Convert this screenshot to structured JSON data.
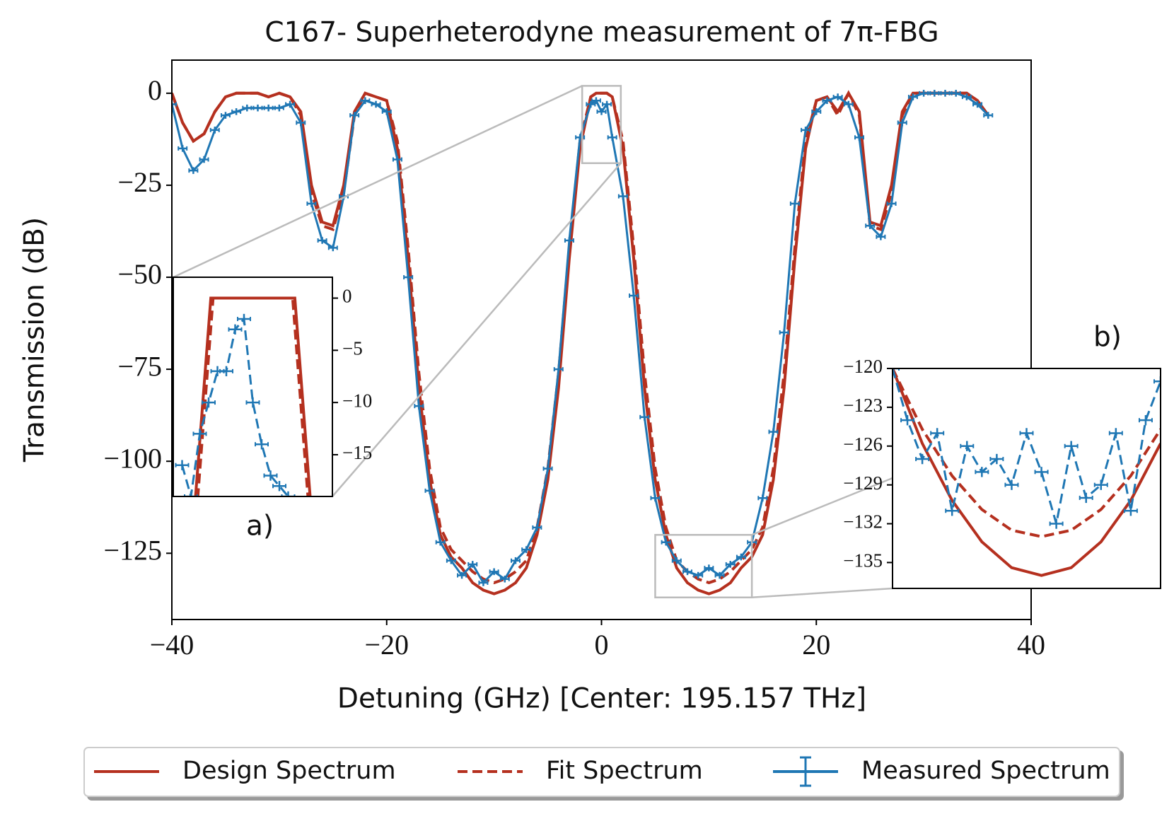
{
  "chart_data": [
    {
      "type": "line",
      "title": "C167- Superheterodyne measurement of 7π-FBG",
      "x_label": "Detuning (GHz) [Center: 195.157 THz]",
      "y_label": "Transmission (dB)",
      "xlim": [
        -40,
        40
      ],
      "ylim": [
        -143,
        9
      ],
      "xticks": [
        {
          "value": -40,
          "label": "−40"
        },
        {
          "value": -20,
          "label": "−20"
        },
        0,
        20,
        40
      ],
      "yticks": [
        0,
        {
          "value": -25,
          "label": "−25"
        },
        {
          "value": -50,
          "label": "−50"
        },
        {
          "value": -75,
          "label": "−75"
        },
        {
          "value": -100,
          "label": "−100"
        },
        {
          "value": -125,
          "label": "−125"
        }
      ],
      "legend": "bottom-outside",
      "x": [
        -40,
        -39,
        -38,
        -37,
        -36,
        -35,
        -34,
        -33,
        -32,
        -31,
        -30,
        -29,
        -28,
        -27,
        -26,
        -25,
        -24,
        -23,
        -22,
        -21,
        -20,
        -19,
        -18,
        -17,
        -16,
        -15,
        -14,
        -13,
        -12,
        -11,
        -10,
        -9,
        -8,
        -7,
        -6,
        -5,
        -4,
        -3,
        -2,
        -1,
        -0.5,
        0,
        0.5,
        1,
        2,
        3,
        4,
        5,
        6,
        7,
        8,
        9,
        10,
        11,
        12,
        13,
        14,
        15,
        16,
        17,
        18,
        19,
        20,
        21,
        22,
        23,
        24,
        25,
        26,
        27,
        28,
        29,
        30,
        31,
        32,
        33,
        34,
        35,
        36
      ],
      "series": [
        {
          "name": "Design Spectrum",
          "color": "#b5301f",
          "style": "solid",
          "values": [
            0,
            -8,
            -13,
            -11,
            -5,
            -1,
            0,
            0,
            0,
            -1,
            0,
            -1,
            -5,
            -25,
            -35,
            -36,
            -25,
            -5,
            0,
            -1,
            -2,
            -15,
            -45,
            -80,
            -105,
            -120,
            -126,
            -129,
            -133,
            -135,
            -136,
            -135,
            -133,
            -129,
            -120,
            -105,
            -80,
            -45,
            -15,
            -1,
            0,
            0,
            0,
            -1,
            -15,
            -45,
            -80,
            -105,
            -120,
            -129,
            -133,
            -135,
            -136,
            -135,
            -133,
            -129,
            -126,
            -120,
            -105,
            -80,
            -45,
            -15,
            -2,
            -1,
            -5,
            0,
            -5,
            -35,
            -36,
            -25,
            -5,
            0,
            0,
            0,
            0,
            0,
            0,
            -2,
            -6
          ]
        },
        {
          "name": "Fit Spectrum",
          "color": "#b5301f",
          "style": "dashed",
          "values": [
            0,
            -8,
            -13,
            -11,
            -5,
            -1,
            0,
            0,
            0,
            -1,
            0,
            -1,
            -6,
            -27,
            -36,
            -37,
            -27,
            -6,
            0,
            -1,
            -2,
            -13,
            -42,
            -76,
            -102,
            -118,
            -124,
            -127,
            -130,
            -132,
            -133,
            -132,
            -130,
            -127,
            -118,
            -102,
            -76,
            -42,
            -13,
            -1,
            0,
            0,
            0,
            -1,
            -13,
            -42,
            -76,
            -102,
            -118,
            -127,
            -130,
            -132,
            -133,
            -132,
            -130,
            -127,
            -124,
            -118,
            -102,
            -76,
            -42,
            -13,
            -2,
            -1,
            -6,
            0,
            -6,
            -36,
            -37,
            -27,
            -6,
            0,
            0,
            0,
            0,
            0,
            0,
            -2,
            -6
          ]
        },
        {
          "name": "Measured Spectrum",
          "color": "#1f77b4",
          "style": "errorbar",
          "values": [
            -3,
            -15,
            -21,
            -18,
            -10,
            -6,
            -5,
            -4,
            -4,
            -4,
            -4,
            -3,
            -8,
            -30,
            -40,
            -42,
            -28,
            -6,
            -2,
            -3,
            -5,
            -18,
            -50,
            -85,
            -108,
            -122,
            -127,
            -131,
            -128,
            -133,
            -130,
            -132,
            -127,
            -124,
            -118,
            -102,
            -75,
            -40,
            -12,
            -3,
            -2,
            -5,
            -3,
            -12,
            -28,
            -55,
            -88,
            -110,
            -122,
            -127,
            -130,
            -131,
            -129,
            -131,
            -128,
            -126,
            -122,
            -110,
            -92,
            -65,
            -30,
            -10,
            -5,
            -2,
            -1,
            -3,
            -12,
            -36,
            -39,
            -30,
            -8,
            -1,
            0,
            0,
            0,
            0,
            -1,
            -3,
            -6
          ]
        }
      ]
    },
    {
      "type": "line",
      "label": "a)",
      "yaxis_position": "right",
      "xlim": [
        -1.8,
        1.8
      ],
      "ylim": [
        -19,
        2
      ],
      "yticks": [
        0,
        {
          "value": -5,
          "label": "−5"
        },
        {
          "value": -10,
          "label": "−10"
        },
        {
          "value": -15,
          "label": "−15"
        }
      ],
      "series": [
        {
          "name": "Design Spectrum",
          "color": "#b5301f",
          "style": "solid",
          "x": [
            -1.35,
            -0.95,
            0.95,
            1.35
          ],
          "values": [
            -22,
            0,
            0,
            -22
          ]
        },
        {
          "name": "Fit Spectrum",
          "color": "#b5301f",
          "style": "dashed",
          "x": [
            -1.3,
            -0.9,
            0.9,
            1.3
          ],
          "values": [
            -22,
            0,
            0,
            -22
          ]
        },
        {
          "name": "Measured Spectrum",
          "color": "#1f77b4",
          "style": "errorbar",
          "x": [
            -1.6,
            -1.4,
            -1.2,
            -1,
            -0.8,
            -0.6,
            -0.4,
            -0.2,
            0,
            0.2,
            0.4,
            0.6,
            0.8
          ],
          "values": [
            -16,
            -19,
            -13,
            -10,
            -7,
            -7,
            -3,
            -2,
            -10,
            -14,
            -17,
            -18,
            -19
          ]
        }
      ]
    },
    {
      "type": "line",
      "label": "b)",
      "yaxis_position": "left",
      "xlim": [
        5,
        14
      ],
      "ylim": [
        -137,
        -120
      ],
      "yticks": [
        {
          "value": -120,
          "label": "−120"
        },
        {
          "value": -123,
          "label": "−123"
        },
        {
          "value": -126,
          "label": "−126"
        },
        {
          "value": -129,
          "label": "−129"
        },
        {
          "value": -132,
          "label": "−132"
        },
        {
          "value": -135,
          "label": "−135"
        }
      ],
      "series": [
        {
          "name": "Design Spectrum",
          "color": "#b5301f",
          "style": "solid",
          "x": [
            5,
            6,
            7,
            8,
            9,
            10,
            11,
            12,
            13,
            14
          ],
          "values": [
            -120,
            -125.8,
            -130.2,
            -133.4,
            -135.4,
            -136,
            -135.4,
            -133.4,
            -130.2,
            -125.8
          ]
        },
        {
          "name": "Fit Spectrum",
          "color": "#b5301f",
          "style": "dashed",
          "x": [
            5,
            6,
            7,
            8,
            9,
            10,
            11,
            12,
            13,
            14
          ],
          "values": [
            -120,
            -124.7,
            -128.3,
            -130.9,
            -132.5,
            -133,
            -132.5,
            -130.9,
            -128.3,
            -124.7
          ]
        },
        {
          "name": "Measured Spectrum",
          "color": "#1f77b4",
          "style": "errorbar",
          "x": [
            5,
            5.5,
            6,
            6.5,
            7,
            7.5,
            8,
            8.5,
            9,
            9.5,
            10,
            10.5,
            11,
            11.5,
            12,
            12.5,
            13,
            13.5,
            14
          ],
          "values": [
            -120,
            -124,
            -127,
            -125,
            -131,
            -126,
            -128,
            -127,
            -129,
            -125,
            -128,
            -132,
            -126,
            -130,
            -129,
            -125,
            -131,
            -124,
            -121
          ]
        }
      ]
    }
  ]
}
